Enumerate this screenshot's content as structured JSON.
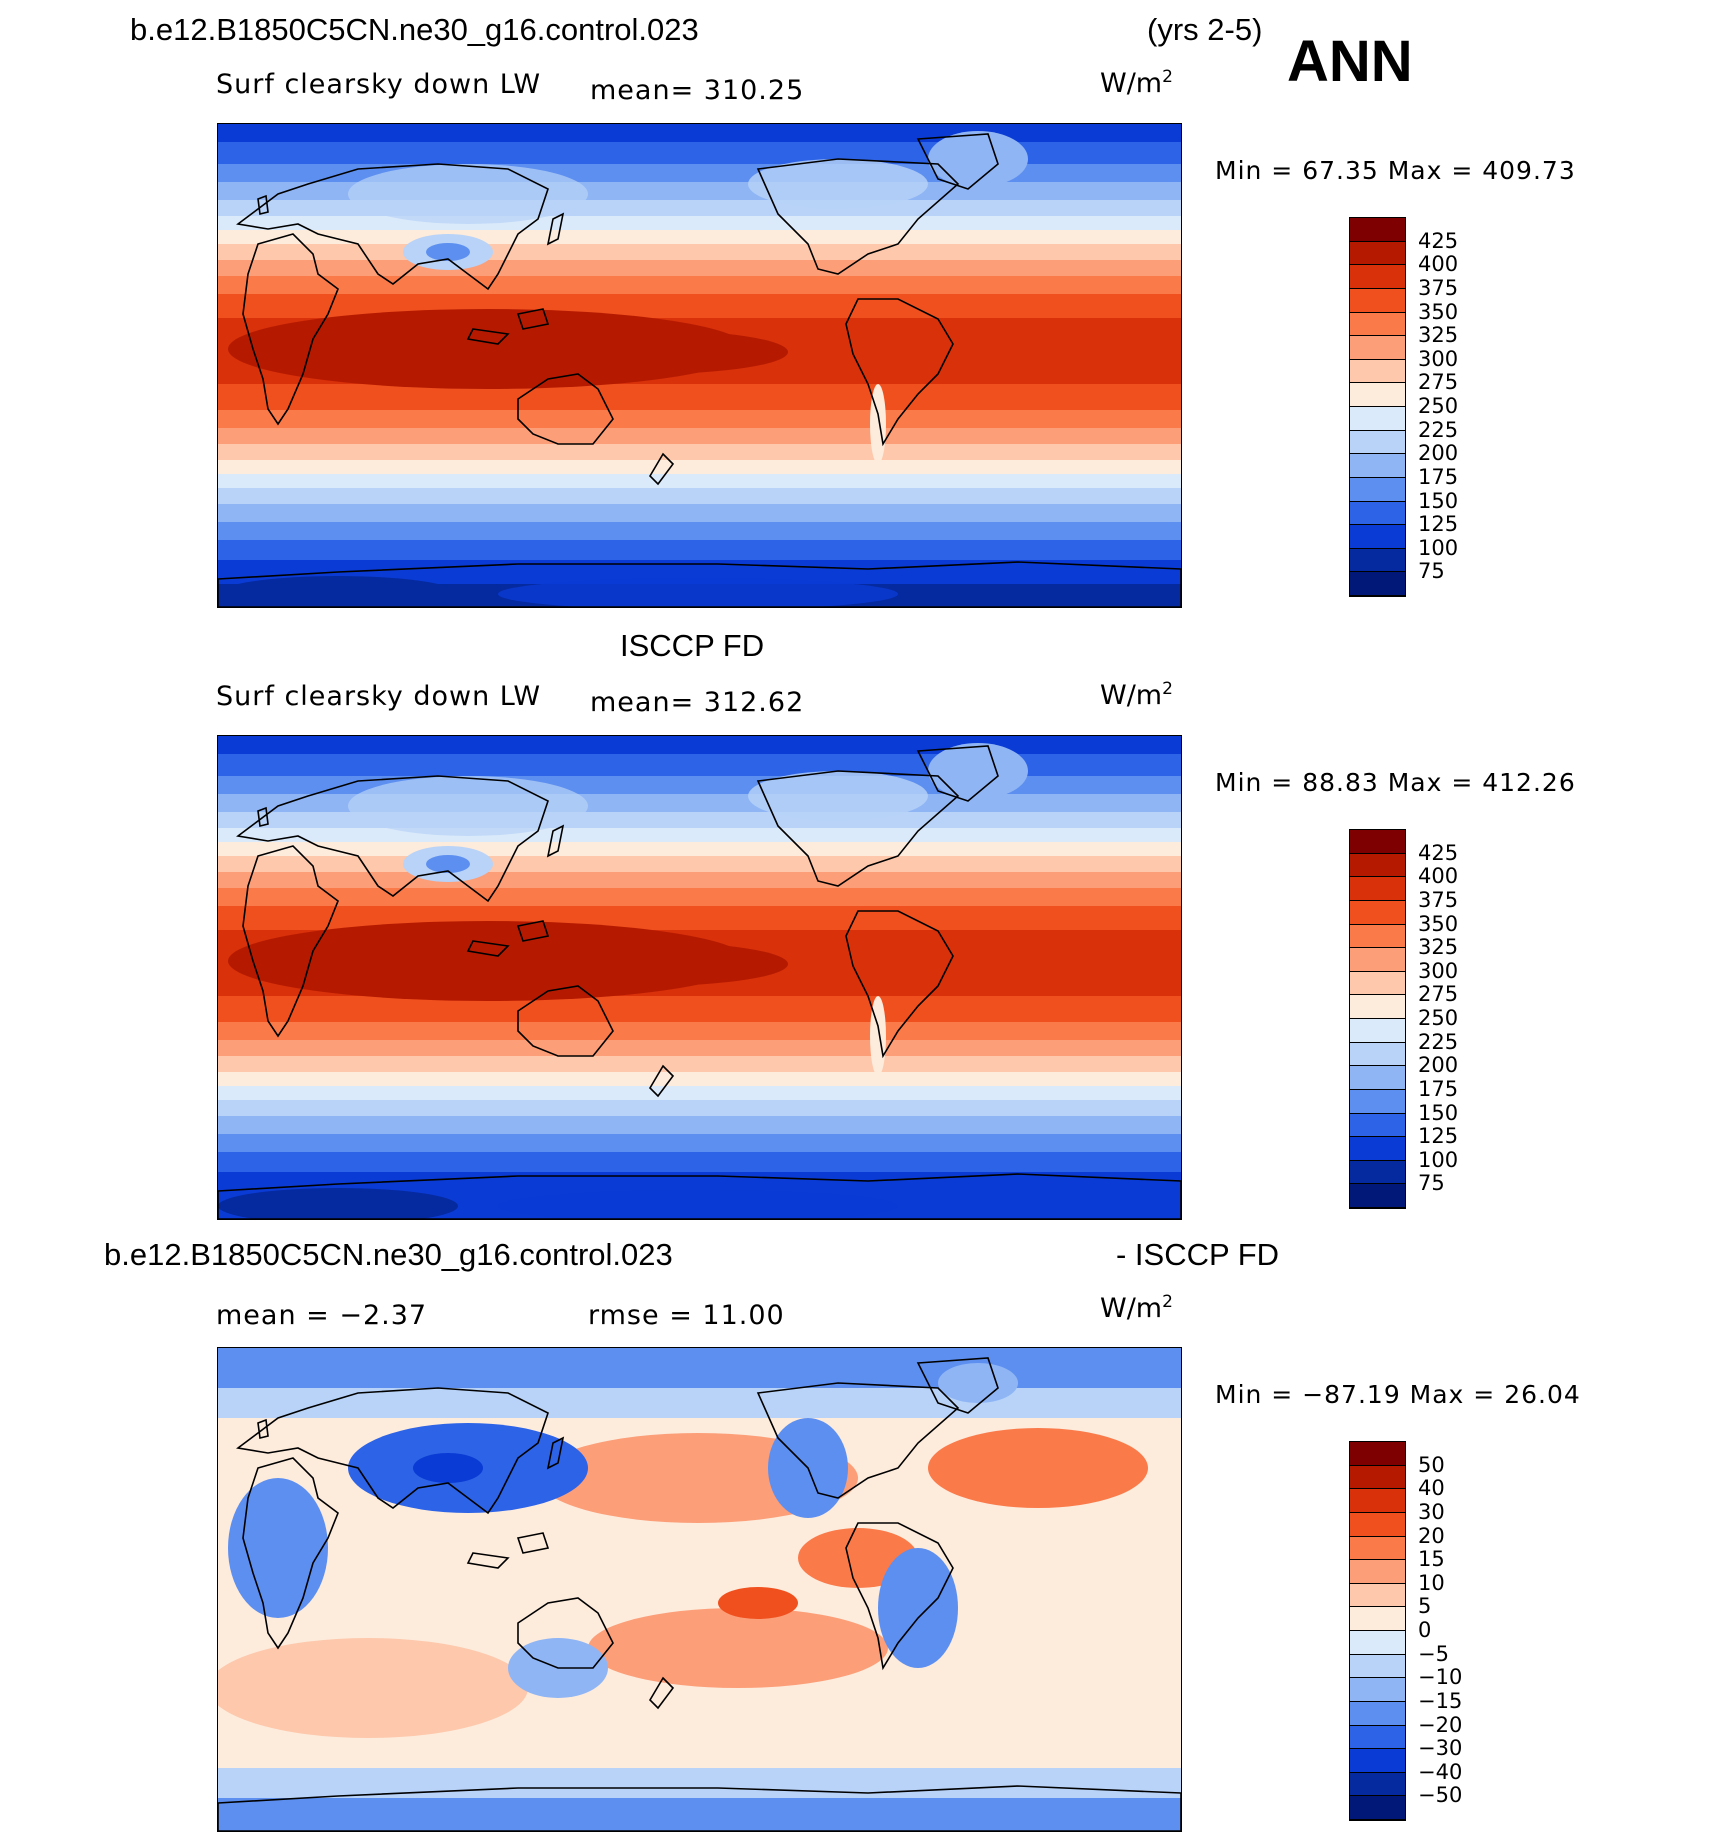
{
  "header": {
    "case_title": "b.e12.B1850C5CN.ne30_g16.control.023",
    "years": "(yrs 2-5)",
    "season": "ANN"
  },
  "panels": [
    {
      "variable": "Surf clearsky down LW",
      "mean_text": "mean= 310.25",
      "units_base": "W/m",
      "units_exp": "2",
      "minmax_text": "Min =   67.35 Max = 409.73",
      "colorbar_levels": [
        "425",
        "400",
        "375",
        "350",
        "325",
        "300",
        "275",
        "250",
        "225",
        "200",
        "175",
        "150",
        "125",
        "100",
        "75"
      ],
      "colorbar_colors": [
        "#7f0000",
        "#b51a00",
        "#d9310a",
        "#f0501e",
        "#fa7a4a",
        "#fc9e78",
        "#fdc8ab",
        "#fdebdc",
        "#dbeafa",
        "#b8d3f7",
        "#8fb5f5",
        "#5d8ff0",
        "#2d63e6",
        "#0a3bd4",
        "#052aa0",
        "#021878"
      ],
      "field_type": "absolute",
      "field_min": 67.35,
      "field_max": 409.73,
      "field_mean": 310.25
    },
    {
      "title": "ISCCP FD",
      "variable": "Surf clearsky down LW",
      "mean_text": "mean= 312.62",
      "units_base": "W/m",
      "units_exp": "2",
      "minmax_text": "Min =   88.83 Max = 412.26",
      "colorbar_levels": [
        "425",
        "400",
        "375",
        "350",
        "325",
        "300",
        "275",
        "250",
        "225",
        "200",
        "175",
        "150",
        "125",
        "100",
        "75"
      ],
      "colorbar_colors": [
        "#7f0000",
        "#b51a00",
        "#d9310a",
        "#f0501e",
        "#fa7a4a",
        "#fc9e78",
        "#fdc8ab",
        "#fdebdc",
        "#dbeafa",
        "#b8d3f7",
        "#8fb5f5",
        "#5d8ff0",
        "#2d63e6",
        "#0a3bd4",
        "#052aa0",
        "#021878"
      ],
      "field_type": "absolute",
      "field_min": 88.83,
      "field_max": 412.26,
      "field_mean": 312.62
    },
    {
      "title_left": "b.e12.B1850C5CN.ne30_g16.control.023",
      "title_right": "- ISCCP FD",
      "mean_text": "mean =   −2.37",
      "rmse_text": "rmse =   11.00",
      "units_base": "W/m",
      "units_exp": "2",
      "minmax_text": "Min = −87.19 Max =   26.04",
      "colorbar_levels": [
        "50",
        "40",
        "30",
        "20",
        "15",
        "10",
        "5",
        "0",
        "−5",
        "−10",
        "−15",
        "−20",
        "−30",
        "−40",
        "−50"
      ],
      "colorbar_colors": [
        "#7f0000",
        "#b51a00",
        "#d9310a",
        "#f0501e",
        "#fa7a4a",
        "#fc9e78",
        "#fdc8ab",
        "#fdebdc",
        "#dbeafa",
        "#b8d3f7",
        "#8fb5f5",
        "#5d8ff0",
        "#2d63e6",
        "#0a3bd4",
        "#052aa0",
        "#021878"
      ],
      "field_type": "difference",
      "field_min": -87.19,
      "field_max": 26.04,
      "field_mean": -2.37,
      "field_rmse": 11.0
    }
  ],
  "chart_data": [
    {
      "type": "heatmap",
      "title": "b.e12.B1850C5CN.ne30_g16.control.023",
      "subtitle": "Surf clearsky down LW",
      "period": "(yrs 2-5)",
      "season": "ANN",
      "units": "W/m2",
      "mean": 310.25,
      "min": 67.35,
      "max": 409.73,
      "contour_levels": [
        75,
        100,
        125,
        150,
        175,
        200,
        225,
        250,
        275,
        300,
        325,
        350,
        375,
        400,
        425
      ]
    },
    {
      "type": "heatmap",
      "title": "ISCCP FD",
      "subtitle": "Surf clearsky down LW",
      "units": "W/m2",
      "mean": 312.62,
      "min": 88.83,
      "max": 412.26,
      "contour_levels": [
        75,
        100,
        125,
        150,
        175,
        200,
        225,
        250,
        275,
        300,
        325,
        350,
        375,
        400,
        425
      ]
    },
    {
      "type": "heatmap",
      "title": "b.e12.B1850C5CN.ne30_g16.control.023 - ISCCP FD",
      "units": "W/m2",
      "mean": -2.37,
      "rmse": 11.0,
      "min": -87.19,
      "max": 26.04,
      "contour_levels": [
        -50,
        -40,
        -30,
        -20,
        -15,
        -10,
        -5,
        0,
        5,
        10,
        15,
        20,
        30,
        40,
        50
      ]
    }
  ]
}
